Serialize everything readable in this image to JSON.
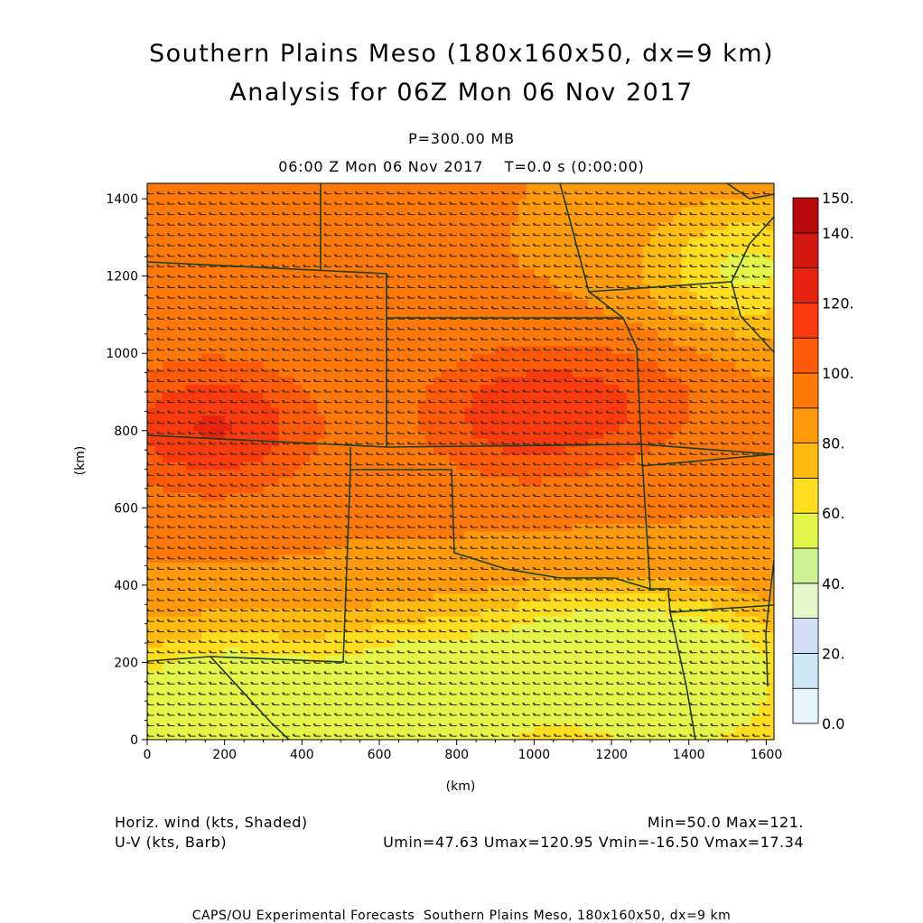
{
  "header": {
    "title_line1": "Southern Plains Meso (180x160x50, dx=9 km)",
    "title_line2": "Analysis for 06Z Mon 06 Nov 2017",
    "level": "P=300.00 MB",
    "time_line": "06:00 Z Mon 06 Nov 2017    T=0.0 s (0:00:00)"
  },
  "footer": {
    "field1": "Horiz. wind (kts, Shaded)",
    "field2": "U-V (kts, Barb)",
    "minmax": "Min=50.0 Max=121.",
    "uv_stats": "Umin=47.63 Umax=120.95 Vmin=-16.50 Vmax=17.34",
    "credit": "CAPS/OU Experimental Forecasts  Southern Plains Meso, 180x160x50, dx=9 km"
  },
  "chart_data": {
    "type": "heatmap",
    "xlabel": "(km)",
    "ylabel": "(km)",
    "xlim": [
      0,
      1620
    ],
    "ylim": [
      0,
      1440
    ],
    "x_ticks": [
      "0",
      "200",
      "400",
      "600",
      "800",
      "1000",
      "1200",
      "1400",
      "1600"
    ],
    "y_ticks": [
      "0",
      "200",
      "400",
      "600",
      "800",
      "1000",
      "1200",
      "1400"
    ],
    "colorbar": {
      "ticks": [
        "150.",
        "140.",
        "120.",
        "100.",
        "80.",
        "60.",
        "40.",
        "20.",
        "0.0"
      ],
      "levels": [
        0,
        10,
        20,
        30,
        40,
        50,
        60,
        70,
        80,
        90,
        100,
        110,
        120,
        130,
        140,
        150
      ],
      "colors": [
        "#e8f6fc",
        "#cfe8f7",
        "#d3ddf5",
        "#e3f7c8",
        "#cdf295",
        "#e4f54a",
        "#ffde20",
        "#ffbb10",
        "#ff9a0a",
        "#ff780a",
        "#ff5a0a",
        "#fb3a10",
        "#e82410",
        "#d2180e",
        "#b80808"
      ]
    },
    "wind_speed_field": {
      "units": "kts",
      "min": 50.0,
      "max": 121,
      "background": 90,
      "features": [
        {
          "x": 170,
          "y": 810,
          "peak": 121
        },
        {
          "x": 960,
          "y": 840,
          "peak": 115
        },
        {
          "x": 1250,
          "y": 880,
          "peak": 103
        },
        {
          "x": 420,
          "y": 1380,
          "peak": 96
        },
        {
          "x": 1550,
          "y": 1220,
          "peak": 58
        },
        {
          "x": 1400,
          "y": 200,
          "peak": 58
        },
        {
          "x": 200,
          "y": 100,
          "peak": 55
        },
        {
          "x": 700,
          "y": 150,
          "peak": 62
        },
        {
          "x": 1100,
          "y": 250,
          "peak": 65
        }
      ]
    },
    "wind_barbs": {
      "units": "kts",
      "u_range": [
        47.63,
        120.95
      ],
      "v_range": [
        -16.5,
        17.34
      ]
    }
  }
}
